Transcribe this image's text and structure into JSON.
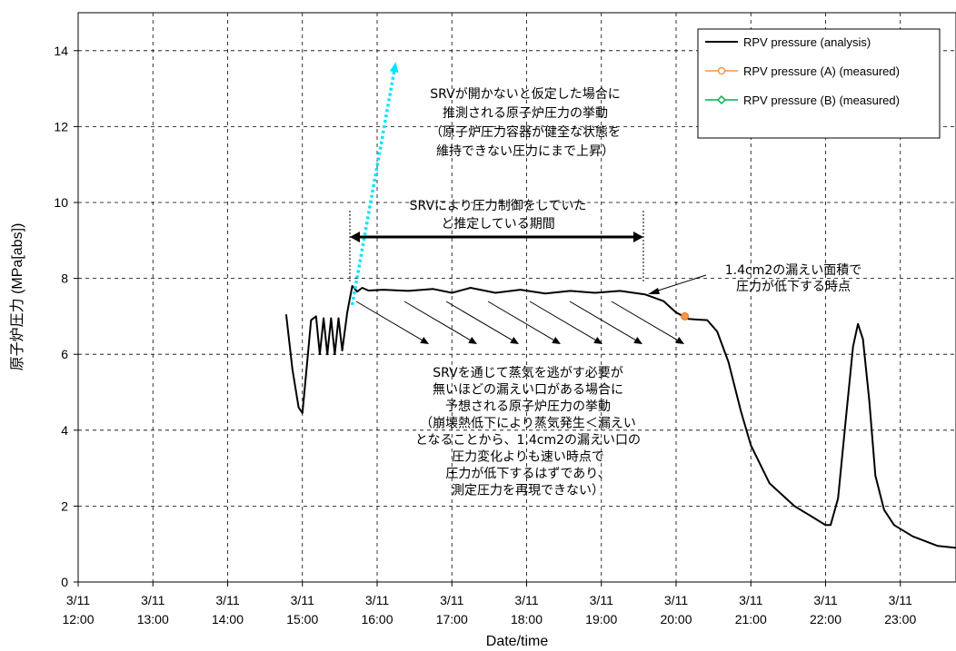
{
  "chart_data": {
    "type": "line",
    "xlabel": "Date/time",
    "ylabel": "原子炉圧力 (MPa[abs])",
    "ylim": [
      0,
      15
    ],
    "xlim": [
      "3/11 12:00",
      "3/11 24:00"
    ],
    "grid": true,
    "legend_position": "top-right",
    "y_ticks": [
      "0",
      "2",
      "4",
      "6",
      "8",
      "10",
      "12",
      "14"
    ],
    "x_ticks": [
      {
        "date": "3/11",
        "time": "12:00"
      },
      {
        "date": "3/11",
        "time": "13:00"
      },
      {
        "date": "3/11",
        "time": "14:00"
      },
      {
        "date": "3/11",
        "time": "15:00"
      },
      {
        "date": "3/11",
        "time": "16:00"
      },
      {
        "date": "3/11",
        "time": "17:00"
      },
      {
        "date": "3/11",
        "time": "18:00"
      },
      {
        "date": "3/11",
        "time": "19:00"
      },
      {
        "date": "3/11",
        "time": "20:00"
      },
      {
        "date": "3/11",
        "time": "21:00"
      },
      {
        "date": "3/11",
        "time": "22:00"
      },
      {
        "date": "3/11",
        "time": "23:00"
      }
    ],
    "series": [
      {
        "name": "RPV pressure (analysis)",
        "color": "#000000",
        "marker": "none",
        "points": [
          [
            "3/11 14:47",
            7.05
          ],
          [
            "3/11 14:52",
            5.6
          ],
          [
            "3/11 14:57",
            4.6
          ],
          [
            "3/11 15:00",
            4.45
          ],
          [
            "3/11 15:03",
            5.5
          ],
          [
            "3/11 15:07",
            6.9
          ],
          [
            "3/11 15:11",
            7.0
          ],
          [
            "3/11 15:14",
            6.0
          ],
          [
            "3/11 15:17",
            6.95
          ],
          [
            "3/11 15:20",
            6.0
          ],
          [
            "3/11 15:23",
            6.95
          ],
          [
            "3/11 15:26",
            6.0
          ],
          [
            "3/11 15:29",
            6.95
          ],
          [
            "3/11 15:32",
            6.1
          ],
          [
            "3/11 15:36",
            7.1
          ],
          [
            "3/11 15:40",
            7.8
          ],
          [
            "3/11 15:44",
            7.65
          ],
          [
            "3/11 15:48",
            7.75
          ],
          [
            "3/11 15:53",
            7.68
          ],
          [
            "3/11 16:05",
            7.7
          ],
          [
            "3/11 16:25",
            7.67
          ],
          [
            "3/11 16:45",
            7.72
          ],
          [
            "3/11 17:00",
            7.62
          ],
          [
            "3/11 17:15",
            7.75
          ],
          [
            "3/11 17:35",
            7.62
          ],
          [
            "3/11 17:55",
            7.7
          ],
          [
            "3/11 18:15",
            7.6
          ],
          [
            "3/11 18:35",
            7.67
          ],
          [
            "3/11 18:55",
            7.62
          ],
          [
            "3/11 19:15",
            7.67
          ],
          [
            "3/11 19:35",
            7.58
          ],
          [
            "3/11 19:50",
            7.4
          ],
          [
            "3/11 20:00",
            7.1
          ],
          [
            "3/11 20:10",
            6.93
          ],
          [
            "3/11 20:25",
            6.9
          ],
          [
            "3/11 20:33",
            6.6
          ],
          [
            "3/11 20:42",
            5.8
          ],
          [
            "3/11 20:52",
            4.5
          ],
          [
            "3/11 21:00",
            3.6
          ],
          [
            "3/11 21:15",
            2.6
          ],
          [
            "3/11 21:35",
            2.0
          ],
          [
            "3/11 21:50",
            1.7
          ],
          [
            "3/11 22:00",
            1.5
          ],
          [
            "3/11 22:04",
            1.5
          ],
          [
            "3/11 22:10",
            2.2
          ],
          [
            "3/11 22:16",
            4.2
          ],
          [
            "3/11 22:22",
            6.2
          ],
          [
            "3/11 22:26",
            6.8
          ],
          [
            "3/11 22:30",
            6.4
          ],
          [
            "3/11 22:35",
            4.8
          ],
          [
            "3/11 22:40",
            2.8
          ],
          [
            "3/11 22:47",
            1.9
          ],
          [
            "3/11 22:55",
            1.5
          ],
          [
            "3/11 23:10",
            1.2
          ],
          [
            "3/11 23:30",
            0.95
          ],
          [
            "3/11 24:00",
            0.85
          ]
        ]
      },
      {
        "name": "RPV pressure (A) (measured)",
        "color": "#f79646",
        "marker": "circle",
        "points": [
          [
            "3/11 20:07",
            7.0
          ]
        ]
      },
      {
        "name": "RPV pressure (B) (measured)",
        "color": "#00b050",
        "marker": "diamond",
        "points": []
      },
      {
        "name": "",
        "color": "#00e5ff",
        "style": "dotted",
        "marker": "arrow",
        "points": [
          [
            "3/11 15:40",
            7.3
          ],
          [
            "3/11 16:15",
            13.7
          ]
        ]
      }
    ],
    "annotations": {
      "srv_not_open_lines": [
        "SRVが開かないと仮定した場合に",
        "推測される原子炉圧力の挙動",
        "（原子炉圧力容器が健全な状態を",
        "維持できない圧力にまで上昇）"
      ],
      "srv_period_lines": [
        "SRVにより圧力制御をしていた",
        "と推定している期間"
      ],
      "leak_time_lines": [
        "1.4cm2の漏えい面積で",
        "圧力が低下する時点"
      ],
      "leak_lines": [
        "SRVを通じて蒸気を逃がす必要が",
        "無いほどの漏えい口がある場合に",
        "予想される原子炉圧力の挙動",
        "（崩壊熱低下により蒸気発生＜漏えい",
        "となることから、1.4cm2の漏えい口の",
        "圧力変化よりも速い時点で",
        "圧力が低下するはずであり、",
        "測定圧力を再現できない）"
      ]
    }
  }
}
